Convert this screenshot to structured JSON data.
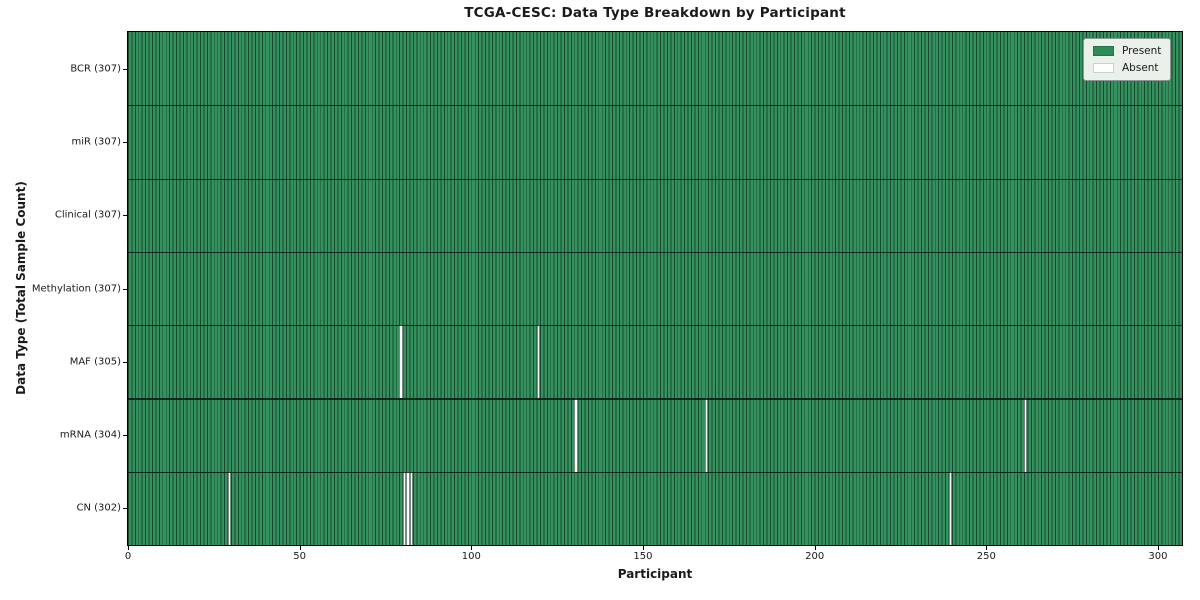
{
  "figure": {
    "title": "TCGA-CESC: Data Type Breakdown by Participant",
    "xlabel": "Participant",
    "ylabel": "Data Type (Total Sample Count)"
  },
  "chart_data": {
    "type": "heatmap",
    "title": "TCGA-CESC: Data Type Breakdown by Participant",
    "xlabel": "Participant",
    "ylabel": "Data Type (Total Sample Count)",
    "n_participants": 307,
    "xlim": [
      0,
      307
    ],
    "x_ticks": [
      0,
      50,
      100,
      150,
      200,
      250,
      300
    ],
    "grid": false,
    "legend_position": "upper right",
    "rows": [
      {
        "name": "BCR",
        "label": "BCR (307)",
        "present_count": 307,
        "absent_count": 0,
        "absent_participants": []
      },
      {
        "name": "miR",
        "label": "miR (307)",
        "present_count": 307,
        "absent_count": 0,
        "absent_participants": []
      },
      {
        "name": "Clinical",
        "label": "Clinical (307)",
        "present_count": 307,
        "absent_count": 0,
        "absent_participants": []
      },
      {
        "name": "Methylation",
        "label": "Methylation (307)",
        "present_count": 307,
        "absent_count": 0,
        "absent_participants": []
      },
      {
        "name": "MAF",
        "label": "MAF (305)",
        "present_count": 305,
        "absent_count": 2,
        "absent_participants": [
          79,
          119
        ]
      },
      {
        "name": "mRNA",
        "label": "mRNA (304)",
        "present_count": 304,
        "absent_count": 3,
        "absent_participants": [
          130,
          168,
          261
        ]
      },
      {
        "name": "CN",
        "label": "CN (302)",
        "present_count": 302,
        "absent_count": 5,
        "absent_participants": [
          29,
          80,
          81,
          82,
          239
        ]
      }
    ],
    "colors": {
      "present": "#2e8b57",
      "absent": "#ffffff",
      "cell_fill": "#35915f",
      "cell_edge": "#16492c"
    },
    "legend_items": [
      {
        "label": "Present",
        "color": "#2e8b57",
        "edge": "#24744a"
      },
      {
        "label": "Absent",
        "color": "#ffffff",
        "edge": "#c9d2c9"
      }
    ]
  }
}
